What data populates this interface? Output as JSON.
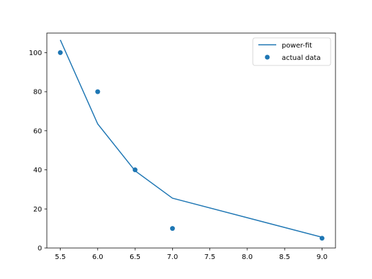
{
  "chart_data": {
    "type": "line",
    "title": "",
    "xlabel": "",
    "ylabel": "",
    "xlim": [
      5.32,
      9.18
    ],
    "ylim": [
      0,
      110
    ],
    "x_ticks": [
      "5.5",
      "6.0",
      "6.5",
      "7.0",
      "7.5",
      "8.0",
      "8.5",
      "9.0"
    ],
    "y_ticks": [
      "0",
      "20",
      "40",
      "60",
      "80",
      "100"
    ],
    "grid": false,
    "legend_placement": "top-right",
    "series": [
      {
        "name": "power-fit",
        "kind": "line",
        "color": "#1f77b4",
        "x": [
          5.5,
          6.0,
          6.5,
          7.0,
          9.0
        ],
        "y": [
          106.5,
          63.5,
          39.5,
          25.5,
          5.5
        ]
      },
      {
        "name": "actual data",
        "kind": "scatter",
        "color": "#1f77b4",
        "x": [
          5.5,
          6.0,
          6.5,
          7.0,
          9.0
        ],
        "y": [
          100,
          80,
          40,
          10,
          5
        ]
      }
    ]
  }
}
